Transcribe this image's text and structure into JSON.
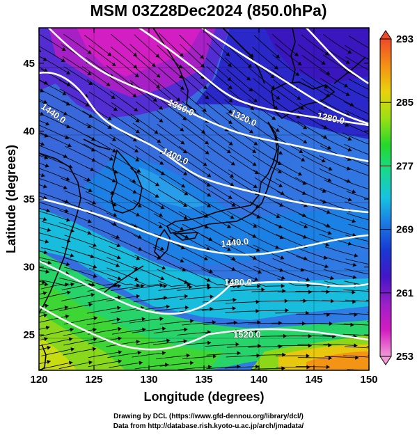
{
  "title": "MSM 03Z28Dec2024 (850.0hPa)",
  "x_axis": {
    "label": "Longitude (degrees)",
    "ticks": [
      120,
      125,
      130,
      135,
      140,
      145,
      150
    ],
    "range": [
      120,
      150
    ]
  },
  "y_axis": {
    "label": "Latitude  (degrees)",
    "ticks": [
      25,
      30,
      35,
      40,
      45
    ],
    "range": [
      22.4,
      47.6
    ]
  },
  "colorbar": {
    "ticks": [
      253,
      261,
      269,
      277,
      285,
      293
    ],
    "range": [
      253,
      293
    ],
    "colors": [
      "#f39ad6",
      "#d21cc0",
      "#9a20c8",
      "#4416c6",
      "#1838d2",
      "#1a78e2",
      "#18c2e0",
      "#18d890",
      "#26d82a",
      "#9ae014",
      "#e8d20e",
      "#f49014",
      "#ee4a2a"
    ]
  },
  "contours": {
    "color": "#ffffff",
    "labels": [
      "1440.0",
      "1360.0",
      "1320.0",
      "1280.0",
      "1400.0",
      "1440.0",
      "1480.0",
      "1520.0"
    ]
  },
  "footer": {
    "line1": "Drawing by DCL (https://www.gfd-dennou.org/library/dcl/)",
    "line2": "Data from http://database.rish.kyoto-u.ac.jp/arch/jmadata/"
  }
}
